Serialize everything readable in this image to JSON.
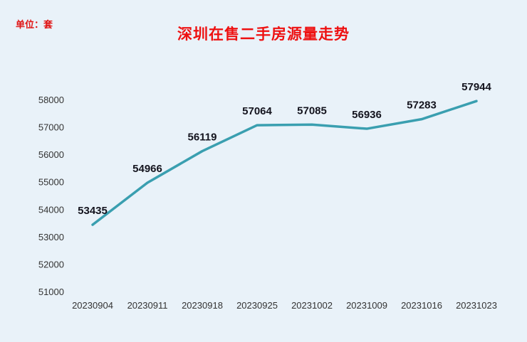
{
  "header": {
    "unit_label": "单位：套",
    "title": "深圳在售二手房源量走势"
  },
  "chart_data": {
    "type": "line",
    "title": "深圳在售二手房源量走势",
    "unit": "套",
    "categories": [
      "20230904",
      "20230911",
      "20230918",
      "20230925",
      "20231002",
      "20231009",
      "20231016",
      "20231023"
    ],
    "values": [
      53435,
      54966,
      56119,
      57064,
      57085,
      56936,
      57283,
      57944
    ],
    "xlabel": "",
    "ylabel": "",
    "ylim": [
      51000,
      58000
    ],
    "ytick_step": 1000,
    "grid": false,
    "legend": "none",
    "line_color": "#3a9fb0",
    "label_color": "#14141e",
    "background_color": "#e9f2f9",
    "title_color": "#ee1111"
  }
}
